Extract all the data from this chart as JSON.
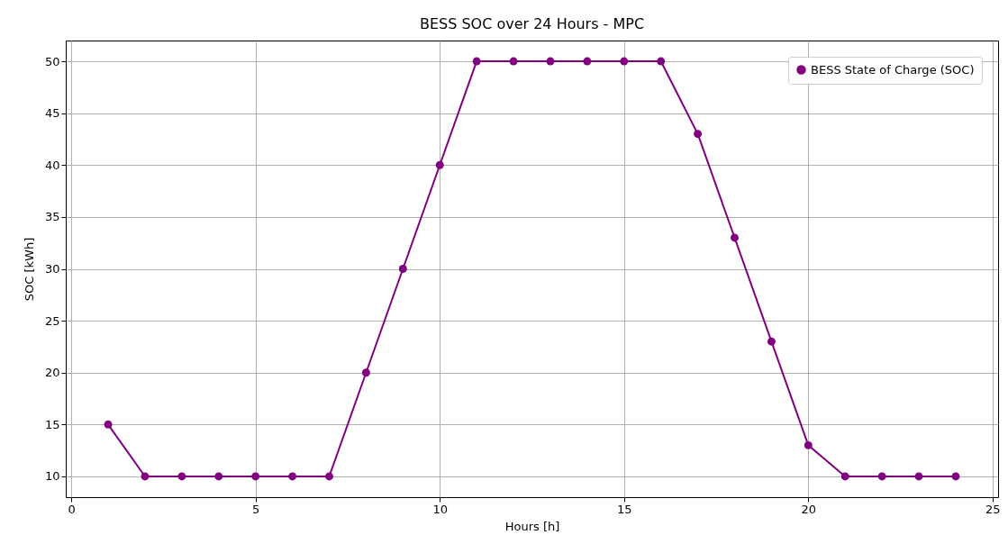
{
  "chart_data": {
    "type": "line",
    "title": "BESS SOC over 24 Hours - MPC",
    "xlabel": "Hours [h]",
    "ylabel": "SOC [kWh]",
    "x": [
      1,
      2,
      3,
      4,
      5,
      6,
      7,
      8,
      9,
      10,
      11,
      12,
      13,
      14,
      15,
      16,
      17,
      18,
      19,
      20,
      21,
      22,
      23,
      24
    ],
    "series": [
      {
        "name": "BESS State of Charge (SOC)",
        "color": "#800080",
        "values": [
          15,
          10,
          10,
          10,
          10,
          10,
          10,
          20,
          30,
          40,
          50,
          50,
          50,
          50,
          50,
          50,
          43,
          33,
          23,
          13,
          10,
          10,
          10,
          10
        ]
      }
    ],
    "xlim": [
      -0.15,
      25.15
    ],
    "ylim": [
      8,
      52
    ],
    "xticks": [
      0,
      5,
      10,
      15,
      20,
      25
    ],
    "yticks": [
      10,
      15,
      20,
      25,
      30,
      35,
      40,
      45,
      50
    ],
    "grid": true,
    "legend": "top right",
    "marker": "circle",
    "line_style": "solid"
  }
}
